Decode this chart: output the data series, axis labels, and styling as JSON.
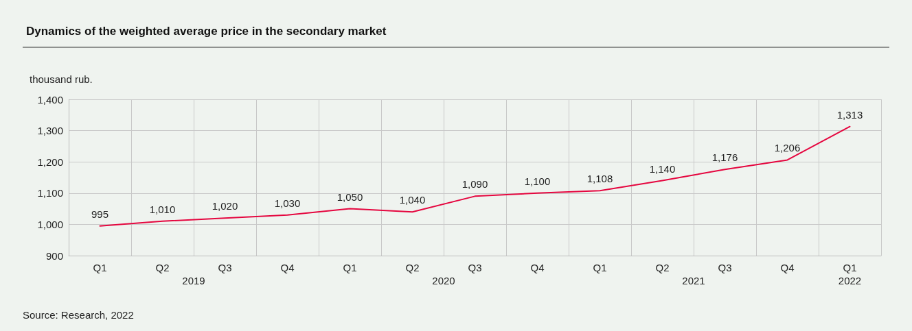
{
  "chart_data": {
    "type": "line",
    "title": "Dynamics of the weighted average price in the secondary market",
    "ylabel": "thousand rub.",
    "categories": [
      "Q1",
      "Q2\n2019",
      "Q3",
      "Q4",
      "Q1",
      "Q2\n2020",
      "Q3",
      "Q4",
      "Q1",
      "Q2\n2021",
      "Q3",
      "Q4",
      "Q1\n2022"
    ],
    "series": [
      {
        "color": "#e5063f",
        "values": [
          995,
          1010,
          1020,
          1030,
          1050,
          1040,
          1090,
          1100,
          1108,
          1140,
          1176,
          1206,
          1313
        ],
        "value_labels": [
          "995",
          "1,010",
          "1,020",
          "1,030",
          "1,050",
          "1,040",
          "1,090",
          "1,100",
          "1,108",
          "1,140",
          "1,176",
          "1,206",
          "1,313"
        ]
      }
    ],
    "ylim": [
      900,
      1400
    ],
    "yticks": [
      900,
      {
        "value": 1000,
        "label": "1,000"
      },
      {
        "value": 1100,
        "label": "1,100"
      },
      {
        "value": 1200,
        "label": "1,200"
      },
      {
        "value": 1300,
        "label": "1,300"
      },
      {
        "value": 1400,
        "label": "1,400"
      }
    ],
    "grid": true,
    "marker": "none",
    "line_style": "solid",
    "annotations": [
      "Source: Research, 2022"
    ]
  }
}
